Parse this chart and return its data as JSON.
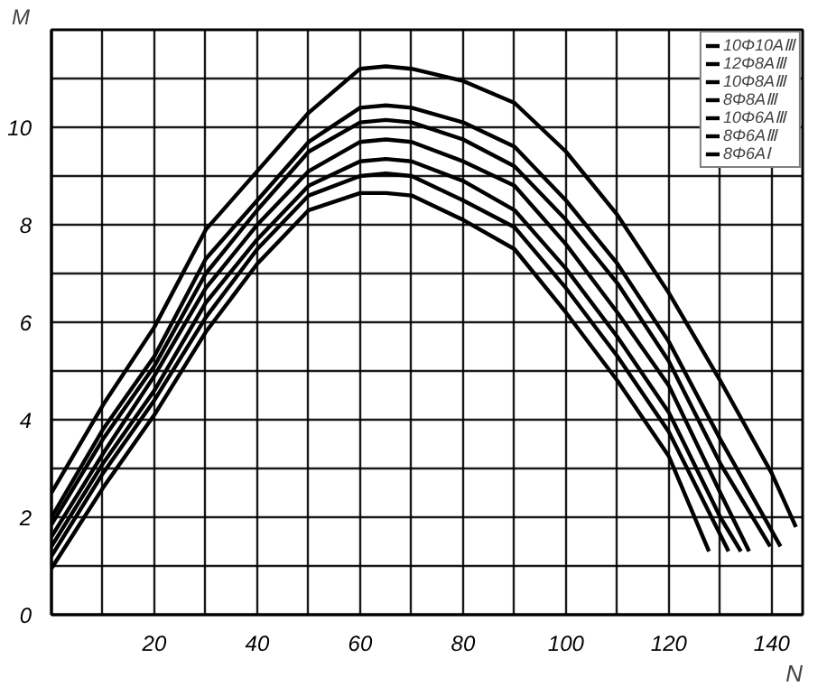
{
  "chart_data": {
    "type": "line",
    "xlabel": "N",
    "ylabel": "M",
    "xlim": [
      0,
      146
    ],
    "ylim": [
      0,
      12
    ],
    "xticks": [
      {
        "value": 10,
        "label": null
      },
      20,
      {
        "value": 30,
        "label": null
      },
      40,
      {
        "value": 50,
        "label": null
      },
      60,
      {
        "value": 70,
        "label": null
      },
      80,
      {
        "value": 90,
        "label": null
      },
      100,
      {
        "value": 110,
        "label": null
      },
      120,
      {
        "value": 130,
        "label": null
      },
      140
    ],
    "yticks": [
      0,
      {
        "value": 1,
        "label": null
      },
      2,
      {
        "value": 3,
        "label": null
      },
      4,
      {
        "value": 5,
        "label": null
      },
      6,
      {
        "value": 7,
        "label": null
      },
      8,
      {
        "value": 9,
        "label": null
      },
      10,
      {
        "value": 11,
        "label": null
      }
    ],
    "grid": true,
    "legend": "top right",
    "marker": "none",
    "line_style": "solid",
    "series": [
      {
        "name": "10Φ10AⅢ",
        "color": "#000000",
        "x": [
          0,
          10,
          20,
          30,
          40,
          50,
          60,
          65,
          70,
          80,
          90,
          100,
          110,
          120,
          130,
          140,
          144.7
        ],
        "values": [
          2.5,
          4.3,
          5.9,
          7.9,
          9.1,
          10.3,
          11.2,
          11.25,
          11.2,
          10.95,
          10.5,
          9.5,
          8.2,
          6.6,
          4.8,
          2.9,
          1.8
        ]
      },
      {
        "name": "12Φ8AⅢ",
        "color": "#000000",
        "x": [
          0,
          10,
          20,
          30,
          40,
          50,
          60,
          65,
          70,
          80,
          90,
          100,
          110,
          120,
          130,
          141.7
        ],
        "values": [
          2.0,
          3.8,
          5.3,
          7.3,
          8.5,
          9.7,
          10.4,
          10.45,
          10.4,
          10.1,
          9.6,
          8.5,
          7.2,
          5.6,
          3.6,
          1.4
        ]
      },
      {
        "name": "10Φ8AⅢ",
        "color": "#000000",
        "x": [
          0,
          10,
          20,
          30,
          40,
          50,
          60,
          65,
          70,
          80,
          90,
          100,
          110,
          120,
          130,
          139.7
        ],
        "values": [
          1.85,
          3.6,
          5.1,
          7.0,
          8.3,
          9.5,
          10.1,
          10.15,
          10.1,
          9.75,
          9.2,
          8.1,
          6.8,
          5.2,
          3.1,
          1.4
        ]
      },
      {
        "name": "8Φ8AⅢ",
        "color": "#000000",
        "x": [
          0,
          10,
          20,
          30,
          40,
          50,
          60,
          65,
          70,
          80,
          90,
          100,
          110,
          120,
          130,
          135.6
        ],
        "values": [
          1.6,
          3.3,
          4.9,
          6.7,
          8.0,
          9.1,
          9.7,
          9.75,
          9.7,
          9.3,
          8.8,
          7.6,
          6.2,
          4.7,
          2.5,
          1.3
        ]
      },
      {
        "name": "10Φ6AⅢ",
        "color": "#000000",
        "x": [
          0,
          10,
          20,
          30,
          40,
          50,
          60,
          65,
          70,
          80,
          90,
          100,
          110,
          120,
          130,
          134
        ],
        "values": [
          1.4,
          3.1,
          4.6,
          6.4,
          7.7,
          8.8,
          9.3,
          9.35,
          9.3,
          8.9,
          8.3,
          7.1,
          5.7,
          4.15,
          2.0,
          1.3
        ]
      },
      {
        "name": "8Φ6AⅢ",
        "color": "#000000",
        "x": [
          0,
          10,
          20,
          30,
          40,
          50,
          60,
          65,
          70,
          80,
          90,
          100,
          110,
          120,
          131.6
        ],
        "values": [
          1.2,
          2.9,
          4.4,
          6.1,
          7.5,
          8.6,
          9.0,
          9.05,
          9.0,
          8.5,
          7.95,
          6.7,
          5.3,
          3.75,
          1.3
        ]
      },
      {
        "name": "8Φ6AⅠ",
        "color": "#000000",
        "x": [
          0,
          10,
          20,
          30,
          40,
          50,
          60,
          65,
          70,
          80,
          90,
          100,
          110,
          120,
          127.8
        ],
        "values": [
          0.95,
          2.6,
          4.1,
          5.8,
          7.2,
          8.3,
          8.65,
          8.65,
          8.6,
          8.1,
          7.5,
          6.2,
          4.8,
          3.25,
          1.3
        ]
      }
    ]
  }
}
